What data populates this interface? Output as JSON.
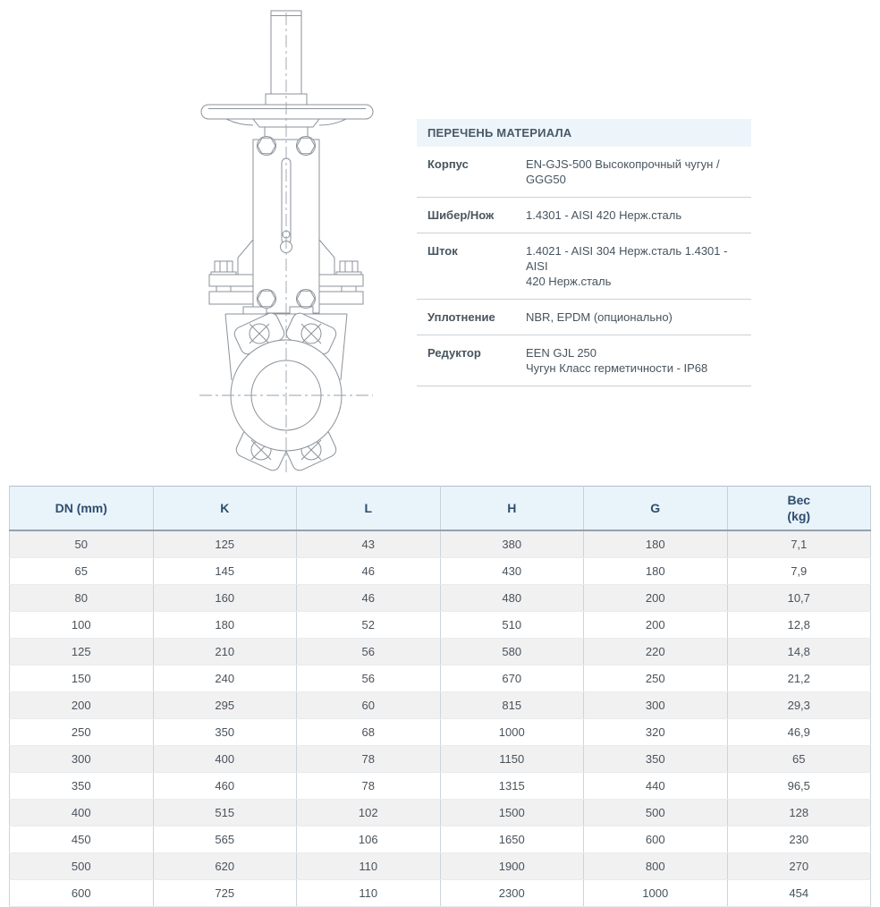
{
  "drawing": {
    "name": "knife-gate-valve-front-view-technical-drawing",
    "line_color": "#8b929a",
    "centerline_color": "#9aa2ab"
  },
  "materials": {
    "title": "ПЕРЕЧЕНЬ МАТЕРИАЛА",
    "rows": [
      {
        "label": "Корпус",
        "lines": [
          "EN-GJS-500 Высокопрочный чугун / GGG50"
        ]
      },
      {
        "label": "Шибер/Нож",
        "lines": [
          "1.4301 - AISI 420 Нерж.сталь"
        ]
      },
      {
        "label": "Шток",
        "lines": [
          "1.4021 - AISI 304 Нерж.сталь 1.4301 - AISI",
          "420 Нерж.сталь"
        ]
      },
      {
        "label": "Уплотнение",
        "lines": [
          "NBR, EPDM (опционально)"
        ]
      },
      {
        "label": "Редуктор",
        "lines": [
          "EEN GJL 250",
          "Чугун Класс герметичности - IP68"
        ]
      }
    ]
  },
  "dimensions": {
    "headers": [
      [
        "DN (mm)"
      ],
      [
        "K"
      ],
      [
        "L"
      ],
      [
        "H"
      ],
      [
        "G"
      ],
      [
        "Вес",
        "(kg)"
      ]
    ],
    "rows": [
      [
        "50",
        "125",
        "43",
        "380",
        "180",
        "7,1"
      ],
      [
        "65",
        "145",
        "46",
        "430",
        "180",
        "7,9"
      ],
      [
        "80",
        "160",
        "46",
        "480",
        "200",
        "10,7"
      ],
      [
        "100",
        "180",
        "52",
        "510",
        "200",
        "12,8"
      ],
      [
        "125",
        "210",
        "56",
        "580",
        "220",
        "14,8"
      ],
      [
        "150",
        "240",
        "56",
        "670",
        "250",
        "21,2"
      ],
      [
        "200",
        "295",
        "60",
        "815",
        "300",
        "29,3"
      ],
      [
        "250",
        "350",
        "68",
        "1000",
        "320",
        "46,9"
      ],
      [
        "300",
        "400",
        "78",
        "1150",
        "350",
        "65"
      ],
      [
        "350",
        "460",
        "78",
        "1315",
        "440",
        "96,5"
      ],
      [
        "400",
        "515",
        "102",
        "1500",
        "500",
        "128"
      ],
      [
        "450",
        "565",
        "106",
        "1650",
        "600",
        "230"
      ],
      [
        "500",
        "620",
        "110",
        "1900",
        "800",
        "270"
      ],
      [
        "600",
        "725",
        "110",
        "2300",
        "1000",
        "454"
      ]
    ]
  },
  "colors": {
    "materials_title_bg": "#edf5fb",
    "materials_text": "#47545f",
    "table_header_bg": "#e9f3fa",
    "table_header_text": "#2e4e6e",
    "table_row_alt_bg": "#f1f1f2",
    "table_cell_text": "#49525a",
    "table_border": "#b4c0c9",
    "drawing_line": "#8b929a"
  }
}
